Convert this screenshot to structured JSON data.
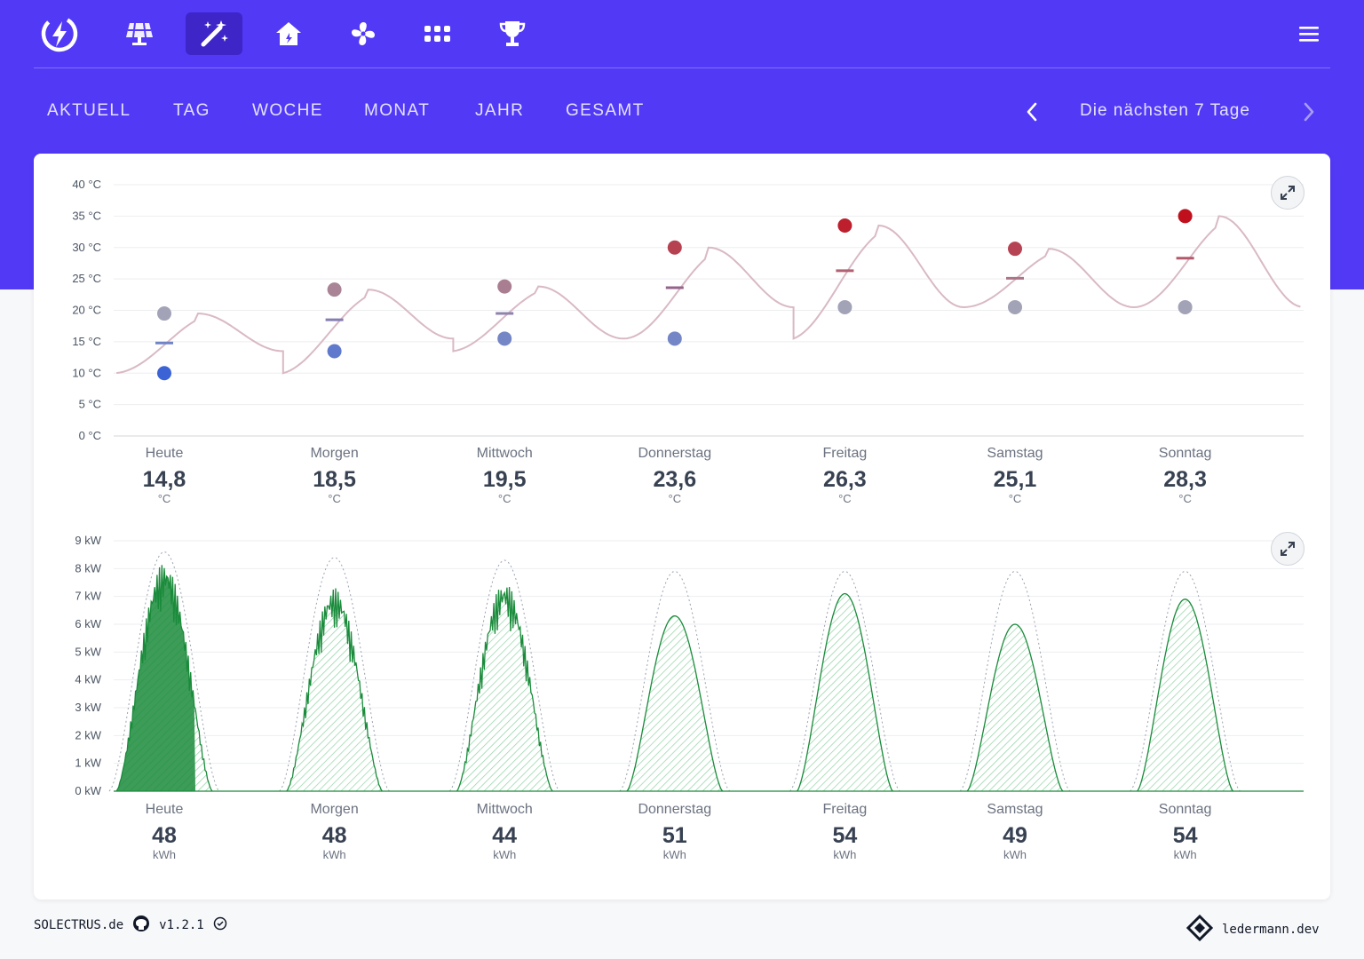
{
  "nav": {
    "icons": [
      "bolt-logo-icon",
      "solar-panel-icon",
      "magic-wand-icon",
      "house-icon",
      "fan-icon",
      "apps-grid-icon",
      "trophy-icon"
    ],
    "active_index": 2,
    "menu_icon": "hamburger-menu-icon"
  },
  "tabs": [
    "AKTUELL",
    "TAG",
    "WOCHE",
    "MONAT",
    "JAHR",
    "GESAMT"
  ],
  "period": {
    "label": "Die nächsten 7 Tage",
    "prev_icon": "chevron-left-icon",
    "next_icon": "chevron-right-icon"
  },
  "colors": {
    "primary": "#5239f5",
    "primary_dark": "#3d25c8",
    "cold": "#3b63d6",
    "warm": "#c0101e",
    "pv_green": "#1a8b3b"
  },
  "temperature": {
    "ticks": [
      "40 °C",
      "35 °C",
      "30 °C",
      "25 °C",
      "20 °C",
      "15 °C",
      "10 °C",
      "5 °C",
      "0 °C"
    ],
    "days": [
      {
        "label": "Heute",
        "value": "14,8",
        "unit": "°C",
        "min": 10.0,
        "max": 19.5,
        "avg": 14.8
      },
      {
        "label": "Morgen",
        "value": "18,5",
        "unit": "°C",
        "min": 13.5,
        "max": 23.3,
        "avg": 18.5
      },
      {
        "label": "Mittwoch",
        "value": "19,5",
        "unit": "°C",
        "min": 15.5,
        "max": 23.8,
        "avg": 19.5
      },
      {
        "label": "Donnerstag",
        "value": "23,6",
        "unit": "°C",
        "min": 15.5,
        "max": 30.0,
        "avg": 23.6
      },
      {
        "label": "Freitag",
        "value": "26,3",
        "unit": "°C",
        "min": 20.5,
        "max": 33.5,
        "avg": 26.3
      },
      {
        "label": "Samstag",
        "value": "25,1",
        "unit": "°C",
        "min": 20.5,
        "max": 29.8,
        "avg": 25.1
      },
      {
        "label": "Sonntag",
        "value": "28,3",
        "unit": "°C",
        "min": 20.5,
        "max": 35.0,
        "avg": 28.3
      }
    ]
  },
  "pv": {
    "ticks": [
      "9 kW",
      "8 kW",
      "7 kW",
      "6 kW",
      "5 kW",
      "4 kW",
      "3 kW",
      "2 kW",
      "1 kW",
      "0 kW"
    ],
    "days": [
      {
        "label": "Heute",
        "value": "48",
        "unit": "kWh",
        "peak": 8.2,
        "clear_sky": 8.6
      },
      {
        "label": "Morgen",
        "value": "48",
        "unit": "kWh",
        "peak": 7.3,
        "clear_sky": 8.4
      },
      {
        "label": "Mittwoch",
        "value": "44",
        "unit": "kWh",
        "peak": 7.5,
        "clear_sky": 8.3
      },
      {
        "label": "Donnerstag",
        "value": "51",
        "unit": "kWh",
        "peak": 6.3,
        "clear_sky": 7.9
      },
      {
        "label": "Freitag",
        "value": "54",
        "unit": "kWh",
        "peak": 7.1,
        "clear_sky": 7.9
      },
      {
        "label": "Samstag",
        "value": "49",
        "unit": "kWh",
        "peak": 6.0,
        "clear_sky": 7.9
      },
      {
        "label": "Sonntag",
        "value": "54",
        "unit": "kWh",
        "peak": 6.9,
        "clear_sky": 7.9
      }
    ]
  },
  "footer": {
    "brand": "SOLECTRUS.de",
    "version": "v1.2.1",
    "github_icon": "github-icon",
    "check_icon": "check-circle-icon",
    "author_logo_icon": "ledermann-logo-icon",
    "author": "ledermann.dev"
  }
}
